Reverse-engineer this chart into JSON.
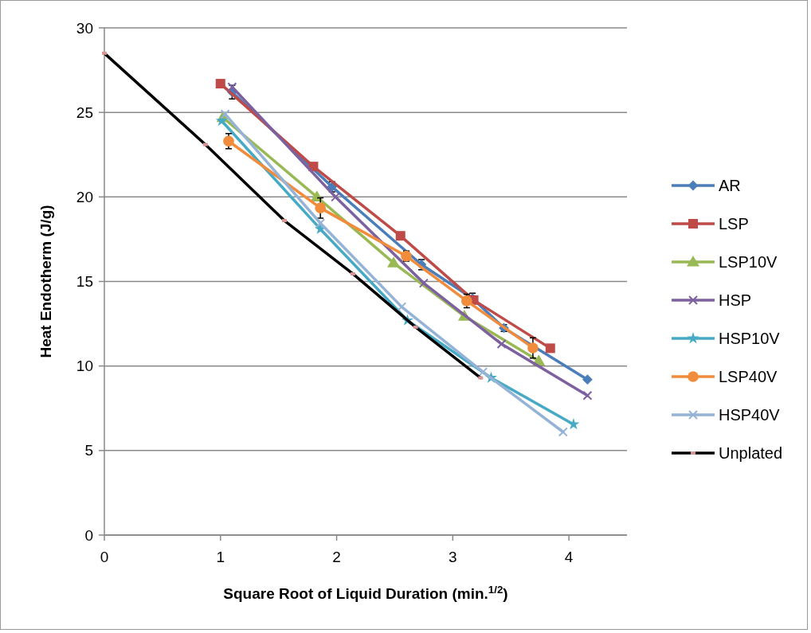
{
  "chart_data": {
    "type": "line",
    "xlabel": "Square Root of Liquid Duration (min.$^{1/2}$)",
    "ylabel": "Heat Endotherm (J/g)",
    "xlim": [
      0,
      4.5
    ],
    "xticks": [
      0,
      1,
      2,
      3,
      4
    ],
    "ylim": [
      0,
      30
    ],
    "yticks": [
      0,
      5,
      10,
      15,
      20,
      25,
      30
    ],
    "grid": "y",
    "legend": "right",
    "series": [
      {
        "name": "AR",
        "color": "#4a7ebb",
        "marker": "diamond",
        "x": [
          1.1,
          1.96,
          2.73,
          3.17,
          3.44,
          4.16
        ],
        "values": [
          26.2,
          20.6,
          16.0,
          14.0,
          12.25,
          9.2
        ],
        "errors": [
          0.4,
          0.3,
          0.3,
          0.3,
          0.2,
          null
        ]
      },
      {
        "name": "LSP",
        "color": "#be4b48",
        "marker": "square",
        "x": [
          1.0,
          1.8,
          2.55,
          3.18,
          3.84
        ],
        "values": [
          26.7,
          21.8,
          17.7,
          13.9,
          11.05
        ]
      },
      {
        "name": "LSP10V",
        "color": "#98b954",
        "marker": "triangle",
        "x": [
          1.02,
          1.83,
          2.49,
          3.1,
          3.74
        ],
        "values": [
          24.7,
          20.0,
          16.1,
          12.95,
          10.3
        ]
      },
      {
        "name": "HSP",
        "color": "#7d60a0",
        "marker": "cross",
        "x": [
          1.1,
          1.99,
          2.75,
          3.42,
          4.16
        ],
        "values": [
          26.5,
          20.0,
          14.9,
          11.3,
          8.25
        ]
      },
      {
        "name": "HSP10V",
        "color": "#46aac5",
        "marker": "star",
        "x": [
          1.01,
          1.86,
          2.61,
          3.33,
          4.04
        ],
        "values": [
          24.5,
          18.1,
          12.7,
          9.3,
          6.55
        ]
      },
      {
        "name": "LSP40V",
        "color": "#f08c3c",
        "marker": "circle",
        "x": [
          1.07,
          1.86,
          2.6,
          3.12,
          3.69
        ],
        "values": [
          23.3,
          19.35,
          16.5,
          13.85,
          11.07
        ],
        "errors": [
          0.45,
          0.6,
          0.3,
          0.4,
          0.6
        ]
      },
      {
        "name": "HSP40V",
        "color": "#95b3d7",
        "marker": "cross",
        "x": [
          1.04,
          1.86,
          2.56,
          3.26,
          3.95
        ],
        "values": [
          24.9,
          18.45,
          13.5,
          9.65,
          6.1
        ]
      },
      {
        "name": "Unplated",
        "color": "#000000",
        "marker": "square",
        "x": [
          0,
          0.87,
          1.55,
          2.14,
          2.68,
          3.24
        ],
        "values": [
          28.5,
          23.1,
          18.6,
          15.45,
          12.3,
          9.3
        ]
      }
    ]
  }
}
